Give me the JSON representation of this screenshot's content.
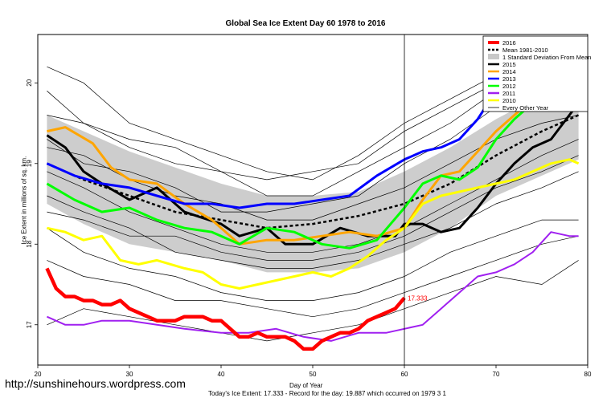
{
  "watermark": "http://sunshinehours.wordpress.com",
  "footnote": "Today's Ice Extent: 17.333  - Record for the day: 19.887 which occurred on 1979 3 1",
  "chart_data": {
    "type": "line",
    "title": "Global Sea Ice Extent Day 60 1978 to 2016",
    "xlabel": "Day of Year",
    "ylabel": "Ice Extent in millions of sq. km.",
    "xlim": [
      20,
      80
    ],
    "ylim": [
      16.5,
      20.6
    ],
    "xticks": [
      20,
      30,
      40,
      50,
      60,
      70,
      80
    ],
    "yticks": [
      17,
      18,
      19,
      20
    ],
    "vline": 60,
    "end_label": "17.333",
    "legend_position": "top-right",
    "legend": [
      {
        "label": "2016",
        "color": "#ff0000",
        "style": "line-thick"
      },
      {
        "label": "Mean 1981-2010",
        "color": "#000000",
        "style": "dashed"
      },
      {
        "label": "1 Standard Deviation From Mean",
        "color": "#c8c8c8",
        "style": "box"
      },
      {
        "label": "2015",
        "color": "#000000",
        "style": "line"
      },
      {
        "label": "2014",
        "color": "#ffa500",
        "style": "line"
      },
      {
        "label": "2013",
        "color": "#0000ff",
        "style": "line"
      },
      {
        "label": "2012",
        "color": "#00ff00",
        "style": "line"
      },
      {
        "label": "2011",
        "color": "#a020f0",
        "style": "line"
      },
      {
        "label": "2010",
        "color": "#ffff00",
        "style": "line"
      },
      {
        "label": "Every Other Year",
        "color": "#000000",
        "style": "thin"
      }
    ],
    "band": {
      "x": [
        21,
        25,
        30,
        35,
        40,
        45,
        50,
        55,
        60,
        65,
        70,
        75,
        79
      ],
      "upper": [
        19.6,
        19.4,
        19.15,
        18.95,
        18.75,
        18.6,
        18.6,
        18.65,
        18.9,
        19.2,
        19.55,
        19.85,
        20.0
      ],
      "lower": [
        18.5,
        18.25,
        18.0,
        17.9,
        17.8,
        17.65,
        17.65,
        17.7,
        17.9,
        18.2,
        18.6,
        18.85,
        19.05
      ]
    },
    "series": [
      {
        "name": "Mean 1981-2010",
        "color": "#000000",
        "width": 2.5,
        "dash": "4,3",
        "x": [
          21,
          25,
          30,
          35,
          40,
          45,
          50,
          55,
          60,
          65,
          70,
          75,
          79
        ],
        "values": [
          19.0,
          18.8,
          18.6,
          18.4,
          18.3,
          18.2,
          18.25,
          18.35,
          18.5,
          18.75,
          19.1,
          19.4,
          19.6
        ]
      },
      {
        "name": "2015",
        "color": "#000000",
        "width": 3,
        "x": [
          21,
          23,
          25,
          27,
          30,
          33,
          36,
          40,
          42,
          45,
          47,
          50,
          53,
          56,
          59,
          60,
          62,
          64,
          66,
          68,
          70,
          72,
          74,
          76,
          78,
          79
        ],
        "values": [
          19.35,
          19.2,
          18.9,
          18.75,
          18.55,
          18.7,
          18.4,
          18.25,
          18.1,
          18.2,
          18.0,
          18.0,
          18.2,
          18.1,
          18.1,
          18.25,
          18.25,
          18.15,
          18.2,
          18.45,
          18.75,
          19.0,
          19.2,
          19.3,
          19.6,
          19.75
        ]
      },
      {
        "name": "2014",
        "color": "#ffa500",
        "width": 3,
        "x": [
          21,
          23,
          26,
          28,
          30,
          33,
          36,
          39,
          42,
          45,
          48,
          51,
          54,
          57,
          60,
          62,
          64,
          66,
          68,
          70,
          72,
          74,
          76,
          79
        ],
        "values": [
          19.4,
          19.45,
          19.25,
          18.95,
          18.8,
          18.75,
          18.5,
          18.3,
          18.0,
          18.05,
          18.05,
          18.1,
          18.15,
          18.1,
          18.2,
          18.55,
          18.85,
          18.9,
          19.15,
          19.4,
          19.6,
          19.8,
          19.9,
          20.1
        ]
      },
      {
        "name": "2013",
        "color": "#0000ff",
        "width": 3,
        "x": [
          21,
          24,
          27,
          30,
          33,
          36,
          39,
          42,
          45,
          48,
          51,
          54,
          57,
          60,
          62,
          64,
          66,
          68,
          70,
          72,
          74,
          76,
          78,
          79
        ],
        "values": [
          19.0,
          18.85,
          18.75,
          18.7,
          18.6,
          18.5,
          18.5,
          18.45,
          18.5,
          18.5,
          18.55,
          18.6,
          18.85,
          19.05,
          19.15,
          19.2,
          19.3,
          19.55,
          19.9,
          20.1,
          20.15,
          20.2,
          20.35,
          20.3
        ]
      },
      {
        "name": "2012",
        "color": "#00ff00",
        "width": 3,
        "x": [
          21,
          24,
          27,
          30,
          33,
          36,
          39,
          42,
          45,
          48,
          51,
          54,
          57,
          60,
          62,
          64,
          66,
          68,
          70,
          72,
          74,
          76,
          79
        ],
        "values": [
          18.75,
          18.55,
          18.4,
          18.45,
          18.3,
          18.2,
          18.15,
          18.0,
          18.2,
          18.15,
          18.0,
          17.95,
          18.05,
          18.45,
          18.75,
          18.85,
          18.8,
          18.95,
          19.3,
          19.55,
          19.75,
          19.9,
          20.15
        ]
      },
      {
        "name": "2011",
        "color": "#a020f0",
        "width": 2,
        "x": [
          21,
          23,
          25,
          27,
          30,
          33,
          36,
          40,
          43,
          46,
          49,
          52,
          55,
          58,
          60,
          62,
          64,
          66,
          68,
          70,
          72,
          74,
          76,
          78,
          79
        ],
        "values": [
          17.1,
          17.0,
          17.0,
          17.05,
          17.05,
          17.0,
          16.95,
          16.9,
          16.9,
          16.95,
          16.85,
          16.8,
          16.9,
          16.9,
          16.95,
          17.0,
          17.2,
          17.4,
          17.6,
          17.65,
          17.75,
          17.9,
          18.15,
          18.1,
          18.1
        ]
      },
      {
        "name": "2010",
        "color": "#ffff00",
        "width": 3,
        "x": [
          21,
          23,
          25,
          27,
          29,
          31,
          33,
          36,
          38,
          40,
          42,
          44,
          46,
          48,
          50,
          52,
          54,
          56,
          58,
          60,
          62,
          64,
          66,
          68,
          70,
          72,
          74,
          76,
          78,
          79
        ],
        "values": [
          18.2,
          18.15,
          18.05,
          18.1,
          17.8,
          17.75,
          17.8,
          17.7,
          17.65,
          17.5,
          17.45,
          17.5,
          17.55,
          17.6,
          17.65,
          17.6,
          17.7,
          17.85,
          18.05,
          18.2,
          18.5,
          18.6,
          18.65,
          18.7,
          18.75,
          18.8,
          18.9,
          19.0,
          19.05,
          19.0
        ]
      },
      {
        "name": "2016",
        "color": "#ff0000",
        "width": 4.5,
        "x": [
          21,
          22,
          23,
          24,
          25,
          26,
          27,
          28,
          29,
          30,
          31,
          32,
          33,
          34,
          35,
          36,
          37,
          38,
          39,
          40,
          41,
          42,
          43,
          44,
          45,
          46,
          47,
          48,
          49,
          50,
          51,
          52,
          53,
          54,
          55,
          56,
          57,
          58,
          59,
          60
        ],
        "values": [
          17.7,
          17.45,
          17.35,
          17.35,
          17.3,
          17.3,
          17.25,
          17.25,
          17.3,
          17.2,
          17.15,
          17.1,
          17.05,
          17.05,
          17.05,
          17.1,
          17.1,
          17.1,
          17.05,
          17.05,
          16.95,
          16.85,
          16.85,
          16.9,
          16.85,
          16.85,
          16.85,
          16.8,
          16.7,
          16.7,
          16.8,
          16.85,
          16.9,
          16.9,
          16.95,
          17.05,
          17.1,
          17.15,
          17.2,
          17.333
        ]
      }
    ],
    "background_years": [
      {
        "x": [
          21,
          25,
          30,
          35,
          40,
          45,
          50,
          55,
          60,
          65,
          70,
          75,
          79
        ],
        "values": [
          19.6,
          19.5,
          19.2,
          19.0,
          18.9,
          18.6,
          18.6,
          18.9,
          19.2,
          19.5,
          19.9,
          20.1,
          20.2
        ]
      },
      {
        "x": [
          21,
          25,
          30,
          35,
          40,
          45,
          50,
          55,
          60,
          65,
          70,
          75,
          79
        ],
        "values": [
          19.9,
          19.5,
          19.3,
          19.2,
          18.9,
          18.8,
          18.9,
          19.0,
          19.4,
          19.7,
          20.0,
          19.8,
          19.9
        ]
      },
      {
        "x": [
          21,
          25,
          30,
          35,
          40,
          45,
          50,
          55,
          60,
          65,
          70,
          75,
          79
        ],
        "values": [
          19.2,
          19.1,
          18.8,
          18.6,
          18.5,
          18.3,
          18.3,
          18.5,
          18.7,
          19.0,
          19.3,
          19.5,
          19.6
        ]
      },
      {
        "x": [
          21,
          25,
          30,
          35,
          40,
          45,
          50,
          55,
          60,
          65,
          70,
          75,
          79
        ],
        "values": [
          18.9,
          18.7,
          18.4,
          18.2,
          18.0,
          17.9,
          17.9,
          18.0,
          18.2,
          18.5,
          18.8,
          19.1,
          19.3
        ]
      },
      {
        "x": [
          21,
          25,
          30,
          35,
          40,
          45,
          50,
          55,
          60,
          65,
          70,
          75,
          79
        ],
        "values": [
          18.6,
          18.4,
          18.2,
          17.9,
          17.8,
          17.7,
          17.7,
          17.8,
          18.0,
          18.2,
          18.5,
          18.7,
          18.9
        ]
      },
      {
        "x": [
          21,
          25,
          30,
          35,
          40,
          45,
          50,
          55,
          60,
          65,
          70,
          75,
          79
        ],
        "values": [
          18.2,
          17.9,
          17.7,
          17.6,
          17.4,
          17.3,
          17.3,
          17.4,
          17.6,
          17.9,
          18.1,
          18.3,
          18.3
        ]
      },
      {
        "x": [
          21,
          25,
          30,
          35,
          40,
          45,
          50,
          55,
          60,
          65,
          70,
          75,
          79
        ],
        "values": [
          17.8,
          17.6,
          17.5,
          17.3,
          17.3,
          17.2,
          17.1,
          17.2,
          17.4,
          17.6,
          17.8,
          18.0,
          18.1
        ]
      },
      {
        "x": [
          21,
          25,
          30,
          35,
          40,
          45,
          50,
          55,
          60,
          65,
          70,
          75,
          79
        ],
        "values": [
          17.0,
          17.2,
          17.1,
          17.0,
          16.9,
          16.8,
          16.9,
          17.0,
          17.2,
          17.4,
          17.6,
          17.5,
          17.8
        ]
      },
      {
        "x": [
          21,
          25,
          30,
          35,
          40,
          45,
          50,
          55,
          60,
          65,
          70,
          75,
          79
        ],
        "values": [
          20.2,
          20.0,
          19.5,
          19.3,
          19.1,
          18.9,
          18.8,
          19.1,
          19.5,
          19.8,
          20.1,
          20.3,
          20.5
        ]
      },
      {
        "x": [
          21,
          25,
          30,
          35,
          40,
          45,
          50,
          55,
          60,
          65,
          70,
          75,
          79
        ],
        "values": [
          19.3,
          19.0,
          18.9,
          18.7,
          18.4,
          18.4,
          18.5,
          18.6,
          19.0,
          19.3,
          19.7,
          19.9,
          20.0
        ]
      },
      {
        "x": [
          21,
          25,
          30,
          35,
          40,
          45,
          50,
          55,
          60,
          65,
          70,
          75,
          79
        ],
        "values": [
          18.4,
          18.3,
          18.1,
          18.1,
          17.9,
          17.8,
          17.8,
          17.9,
          18.1,
          18.4,
          18.7,
          18.9,
          19.1
        ]
      }
    ]
  }
}
